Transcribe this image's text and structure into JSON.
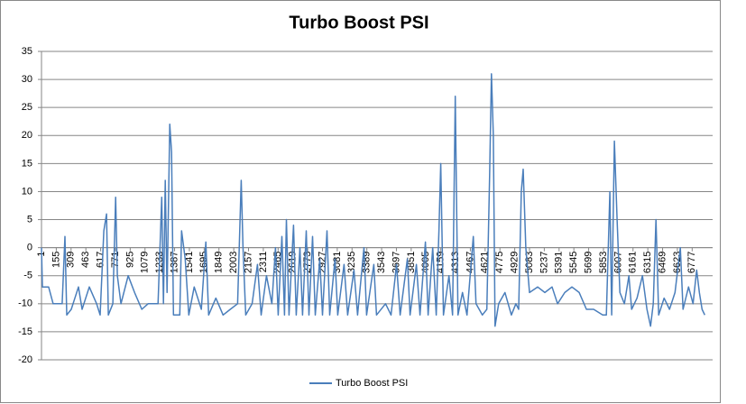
{
  "chart_data": {
    "type": "line",
    "title": "Turbo Boost PSI",
    "x": [
      1,
      10,
      75,
      122,
      216,
      245,
      264,
      311,
      386,
      424,
      499,
      575,
      612,
      650,
      678,
      697,
      744,
      773,
      791,
      829,
      904,
      970,
      1046,
      1111,
      1215,
      1253,
      1271,
      1290,
      1309,
      1337,
      1356,
      1375,
      1441,
      1460,
      1497,
      1535,
      1591,
      1666,
      1713,
      1742,
      1817,
      1892,
      1967,
      2043,
      2081,
      2100,
      2128,
      2194,
      2250,
      2288,
      2344,
      2400,
      2438,
      2466,
      2504,
      2532,
      2551,
      2579,
      2626,
      2654,
      2692,
      2720,
      2758,
      2786,
      2824,
      2852,
      2899,
      2927,
      2974,
      3002,
      3058,
      3086,
      3152,
      3189,
      3255,
      3293,
      3359,
      3387,
      3462,
      3490,
      3584,
      3641,
      3698,
      3736,
      3811,
      3839,
      3905,
      3943,
      3999,
      4027,
      4075,
      4112,
      4140,
      4159,
      4187,
      4244,
      4282,
      4310,
      4338,
      4385,
      4432,
      4498,
      4526,
      4592,
      4639,
      4668,
      4687,
      4706,
      4724,
      4762,
      4828,
      4894,
      4941,
      4970,
      4998,
      5017,
      5045,
      5083,
      5168,
      5243,
      5318,
      5375,
      5450,
      5525,
      5601,
      5676,
      5751,
      5845,
      5883,
      5920,
      5939,
      5967,
      5995,
      6024,
      6071,
      6118,
      6146,
      6203,
      6259,
      6306,
      6344,
      6372,
      6400,
      6428,
      6485,
      6541,
      6598,
      6654,
      6682,
      6739,
      6786,
      6824,
      6852,
      6880,
      6908
    ],
    "series": [
      {
        "name": "Turbo Boost PSI",
        "color": "#4a7ebb",
        "values": [
          0,
          -7,
          -7,
          -10,
          -10,
          2,
          -12,
          -11,
          -7,
          -11,
          -7,
          -10,
          -12,
          3,
          6,
          -12,
          -10,
          9,
          -5,
          -10,
          -5,
          -8,
          -11,
          -10,
          -10,
          9,
          -10,
          12,
          -8,
          22,
          17,
          -12,
          -12,
          3,
          -2,
          -12,
          -7,
          -11,
          1,
          -12,
          -9,
          -12,
          -11,
          -10,
          12,
          0,
          -12,
          -10,
          -3,
          -12,
          -5,
          -10,
          0,
          -12,
          2,
          -12,
          5,
          -12,
          4,
          -12,
          0,
          -12,
          3,
          -12,
          2,
          -12,
          -2,
          -12,
          3,
          -12,
          -2,
          -12,
          -3,
          -12,
          -4,
          -12,
          0,
          -12,
          -3,
          -12,
          -10,
          -12,
          -3,
          -12,
          -2,
          -12,
          -3,
          -12,
          1,
          -12,
          0,
          -12,
          3,
          15,
          -12,
          -5,
          -12,
          27,
          -12,
          -8,
          -12,
          2,
          -10,
          -12,
          -11,
          13,
          31,
          20,
          -14,
          -10,
          -8,
          -12,
          -10,
          -11,
          10,
          14,
          0,
          -8,
          -7,
          -8,
          -7,
          -10,
          -8,
          -7,
          -8,
          -11,
          -11,
          -12,
          -12,
          10,
          -12,
          19,
          5,
          -8,
          -10,
          -5,
          -11,
          -9,
          -5,
          -11,
          -14,
          -10,
          5,
          -12,
          -9,
          -11,
          -8,
          0,
          -11,
          -7,
          -10,
          -4,
          -8,
          -11,
          -12
        ]
      }
    ],
    "xlim": [
      1,
      6990
    ],
    "xticks": [
      1,
      155,
      309,
      463,
      617,
      771,
      925,
      1079,
      1233,
      1387,
      1541,
      1695,
      1849,
      2003,
      2157,
      2311,
      2465,
      2619,
      2773,
      2927,
      3081,
      3235,
      3389,
      3543,
      3697,
      3851,
      4005,
      4159,
      4313,
      4467,
      4621,
      4775,
      4929,
      5083,
      5237,
      5391,
      5545,
      5699,
      5853,
      6007,
      6161,
      6315,
      6469,
      6623,
      6777
    ],
    "ylim": [
      -20,
      35
    ],
    "yticks": [
      -20,
      -15,
      -10,
      -5,
      0,
      5,
      10,
      15,
      20,
      25,
      30,
      35
    ],
    "grid": true,
    "legend": "bottom"
  }
}
